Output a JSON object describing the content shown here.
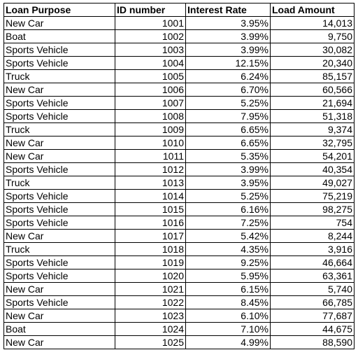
{
  "table": {
    "headers": [
      "Loan Purpose",
      "ID number",
      "Interest Rate",
      "Load Amount"
    ],
    "rows": [
      [
        "New Car",
        "1001",
        "3.95%",
        "14,013"
      ],
      [
        "Boat",
        "1002",
        "3.99%",
        "9,750"
      ],
      [
        "Sports Vehicle",
        "1003",
        "3.99%",
        "30,082"
      ],
      [
        "Sports Vehicle",
        "1004",
        "12.15%",
        "20,340"
      ],
      [
        "Truck",
        "1005",
        "6.24%",
        "85,157"
      ],
      [
        "New Car",
        "1006",
        "6.70%",
        "60,566"
      ],
      [
        "Sports Vehicle",
        "1007",
        "5.25%",
        "21,694"
      ],
      [
        "Sports Vehicle",
        "1008",
        "7.95%",
        "51,318"
      ],
      [
        "Truck",
        "1009",
        "6.65%",
        "9,374"
      ],
      [
        "New Car",
        "1010",
        "6.65%",
        "32,795"
      ],
      [
        "New Car",
        "1011",
        "5.35%",
        "54,201"
      ],
      [
        "Sports Vehicle",
        "1012",
        "3.99%",
        "40,354"
      ],
      [
        "Truck",
        "1013",
        "3.95%",
        "49,027"
      ],
      [
        "Sports Vehicle",
        "1014",
        "5.25%",
        "75,219"
      ],
      [
        "Sports Vehicle",
        "1015",
        "6.16%",
        "98,275"
      ],
      [
        "Sports Vehicle",
        "1016",
        "7.25%",
        "754"
      ],
      [
        "New Car",
        "1017",
        "5.42%",
        "8,244"
      ],
      [
        "Truck",
        "1018",
        "4.35%",
        "3,916"
      ],
      [
        "Sports Vehicle",
        "1019",
        "9.25%",
        "46,664"
      ],
      [
        "Sports Vehicle",
        "1020",
        "5.95%",
        "63,361"
      ],
      [
        "New Car",
        "1021",
        "6.15%",
        "5,740"
      ],
      [
        "Sports Vehicle",
        "1022",
        "8.45%",
        "66,785"
      ],
      [
        "New Car",
        "1023",
        "6.10%",
        "77,687"
      ],
      [
        "Boat",
        "1024",
        "7.10%",
        "44,675"
      ],
      [
        "New Car",
        "1025",
        "4.99%",
        "88,590"
      ]
    ]
  }
}
